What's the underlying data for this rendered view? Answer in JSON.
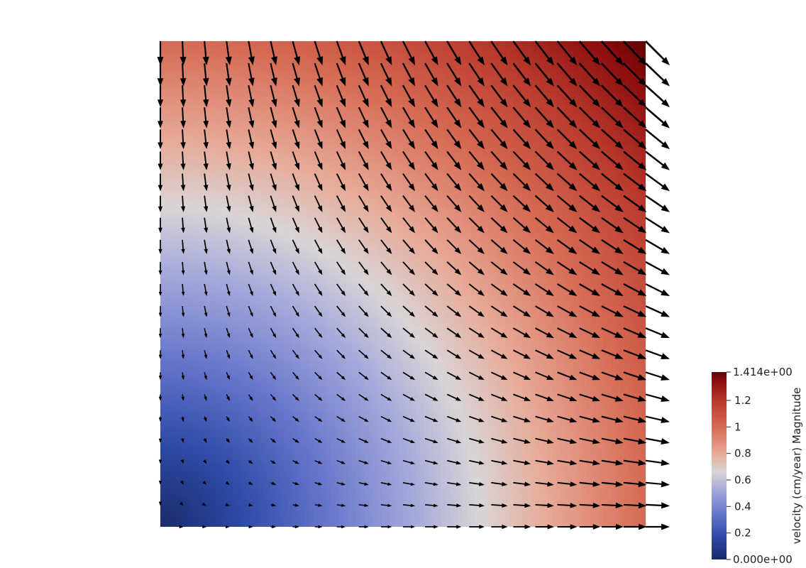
{
  "chart_data": {
    "type": "heatmap",
    "colormap": "Cool to Warm (extended)",
    "field": "velocity (cm/year) Magnitude",
    "vector_glyphs": "arrow",
    "field_formula": "velocity = (x, -y) on the unit square, magnitude = sqrt(x^2 + y^2)",
    "domain": {
      "x": [
        0,
        1
      ],
      "y": [
        0,
        1
      ]
    },
    "range": [
      0.0,
      1.414
    ],
    "colorbar": {
      "title": "velocity (cm/year) Magnitude",
      "min_label": "0.000e+00",
      "max_label": "1.414e+00",
      "ticks": [
        {
          "value": 0.2,
          "label": "0.2"
        },
        {
          "value": 0.4,
          "label": "0.4"
        },
        {
          "value": 0.6,
          "label": "0.6"
        },
        {
          "value": 0.8,
          "label": "0.8"
        },
        {
          "value": 1.0,
          "label": "1"
        },
        {
          "value": 1.2,
          "label": "1.2"
        }
      ],
      "colors": [
        {
          "value": 0.0,
          "color": "#1a2a6c"
        },
        {
          "value": 0.177,
          "color": "#2f4ca8"
        },
        {
          "value": 0.354,
          "color": "#6a78cc"
        },
        {
          "value": 0.53,
          "color": "#a7abdb"
        },
        {
          "value": 0.66,
          "color": "#d9d4d6"
        },
        {
          "value": 0.8,
          "color": "#e7a996"
        },
        {
          "value": 1.0,
          "color": "#d66a54"
        },
        {
          "value": 1.2,
          "color": "#b8382c"
        },
        {
          "value": 1.35,
          "color": "#8a0c0c"
        },
        {
          "value": 1.414,
          "color": "#5e0404"
        }
      ]
    },
    "grid": false,
    "legend_position": "bottom-right"
  }
}
